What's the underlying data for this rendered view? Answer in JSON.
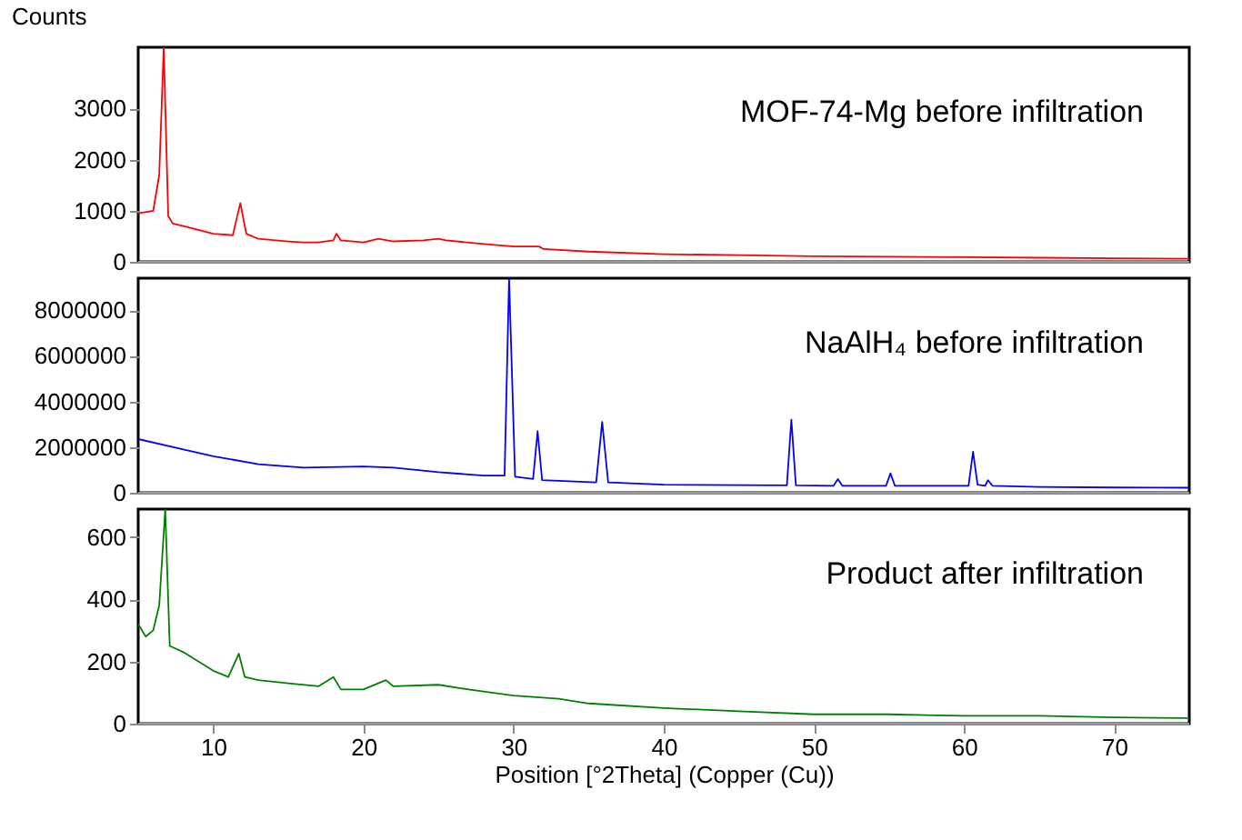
{
  "chart_data": [
    {
      "type": "line",
      "ylabel": "Counts",
      "annotations": [
        "MOF-74-Mg before infiltration"
      ],
      "xlim": [
        5,
        75
      ],
      "ylim": [
        0,
        4200
      ],
      "yticks": [
        0,
        1000,
        2000,
        3000
      ],
      "tick_labels": "y",
      "grid": false,
      "series": [
        {
          "color": "#ff0000",
          "x": [
            5,
            6,
            6.4,
            6.7,
            7.0,
            7.3,
            8,
            10,
            11.3,
            11.8,
            12.2,
            13,
            15,
            16,
            17,
            18,
            18.2,
            18.5,
            20,
            21,
            22,
            24,
            25,
            25.5,
            28,
            30,
            31.7,
            32,
            35,
            40,
            45,
            50,
            55,
            60,
            65,
            70,
            75
          ],
          "values": [
            950,
            1000,
            1700,
            4200,
            900,
            750,
            700,
            550,
            520,
            1150,
            550,
            450,
            400,
            380,
            380,
            420,
            550,
            420,
            380,
            450,
            400,
            420,
            450,
            420,
            350,
            300,
            300,
            250,
            200,
            150,
            130,
            110,
            100,
            90,
            80,
            70,
            60
          ]
        }
      ]
    },
    {
      "type": "line",
      "annotations": [
        "NaAlH₄ before infiltration"
      ],
      "xlim": [
        5,
        75
      ],
      "ylim": [
        0,
        9400000
      ],
      "yticks": [
        0,
        2000000,
        4000000,
        6000000,
        8000000
      ],
      "tick_labels": "y",
      "grid": false,
      "series": [
        {
          "color": "#0000ff",
          "x": [
            5,
            8,
            10,
            13,
            16,
            20,
            22,
            25,
            28,
            29.4,
            29.7,
            30.1,
            31.3,
            31.6,
            31.9,
            35.5,
            35.9,
            36.3,
            40,
            45,
            48.2,
            48.5,
            48.8,
            51.3,
            51.6,
            51.9,
            54.8,
            55.1,
            55.4,
            60.3,
            60.6,
            60.9,
            61.4,
            61.6,
            61.9,
            65,
            70,
            75
          ],
          "values": [
            2350000,
            1900000,
            1600000,
            1250000,
            1100000,
            1150000,
            1100000,
            900000,
            750000,
            750000,
            9400000,
            700000,
            600000,
            2700000,
            550000,
            450000,
            3100000,
            450000,
            350000,
            330000,
            320000,
            3200000,
            320000,
            300000,
            600000,
            300000,
            300000,
            850000,
            300000,
            300000,
            1800000,
            350000,
            300000,
            550000,
            300000,
            250000,
            230000,
            220000
          ]
        }
      ]
    },
    {
      "type": "line",
      "xlabel": "Position [°2Theta] (Copper (Cu))",
      "annotations": [
        "Product after infiltration"
      ],
      "xlim": [
        5,
        75
      ],
      "xticks": [
        10,
        20,
        30,
        40,
        50,
        60,
        70
      ],
      "ylim": [
        0,
        690
      ],
      "yticks": [
        0,
        200,
        400,
        600
      ],
      "grid": false,
      "series": [
        {
          "color": "#008000",
          "x": [
            5,
            5.5,
            6,
            6.4,
            6.8,
            7.1,
            8,
            9,
            10,
            11,
            11.7,
            12.1,
            13,
            15,
            17,
            18,
            18.5,
            20,
            21.5,
            22,
            25,
            27,
            30,
            33,
            35,
            40,
            45,
            50,
            55,
            60,
            65,
            70,
            75
          ],
          "values": [
            320,
            280,
            300,
            380,
            690,
            250,
            230,
            200,
            170,
            150,
            225,
            150,
            140,
            130,
            120,
            150,
            110,
            110,
            140,
            120,
            125,
            110,
            90,
            80,
            65,
            50,
            40,
            30,
            30,
            25,
            25,
            20,
            18
          ]
        }
      ]
    }
  ]
}
